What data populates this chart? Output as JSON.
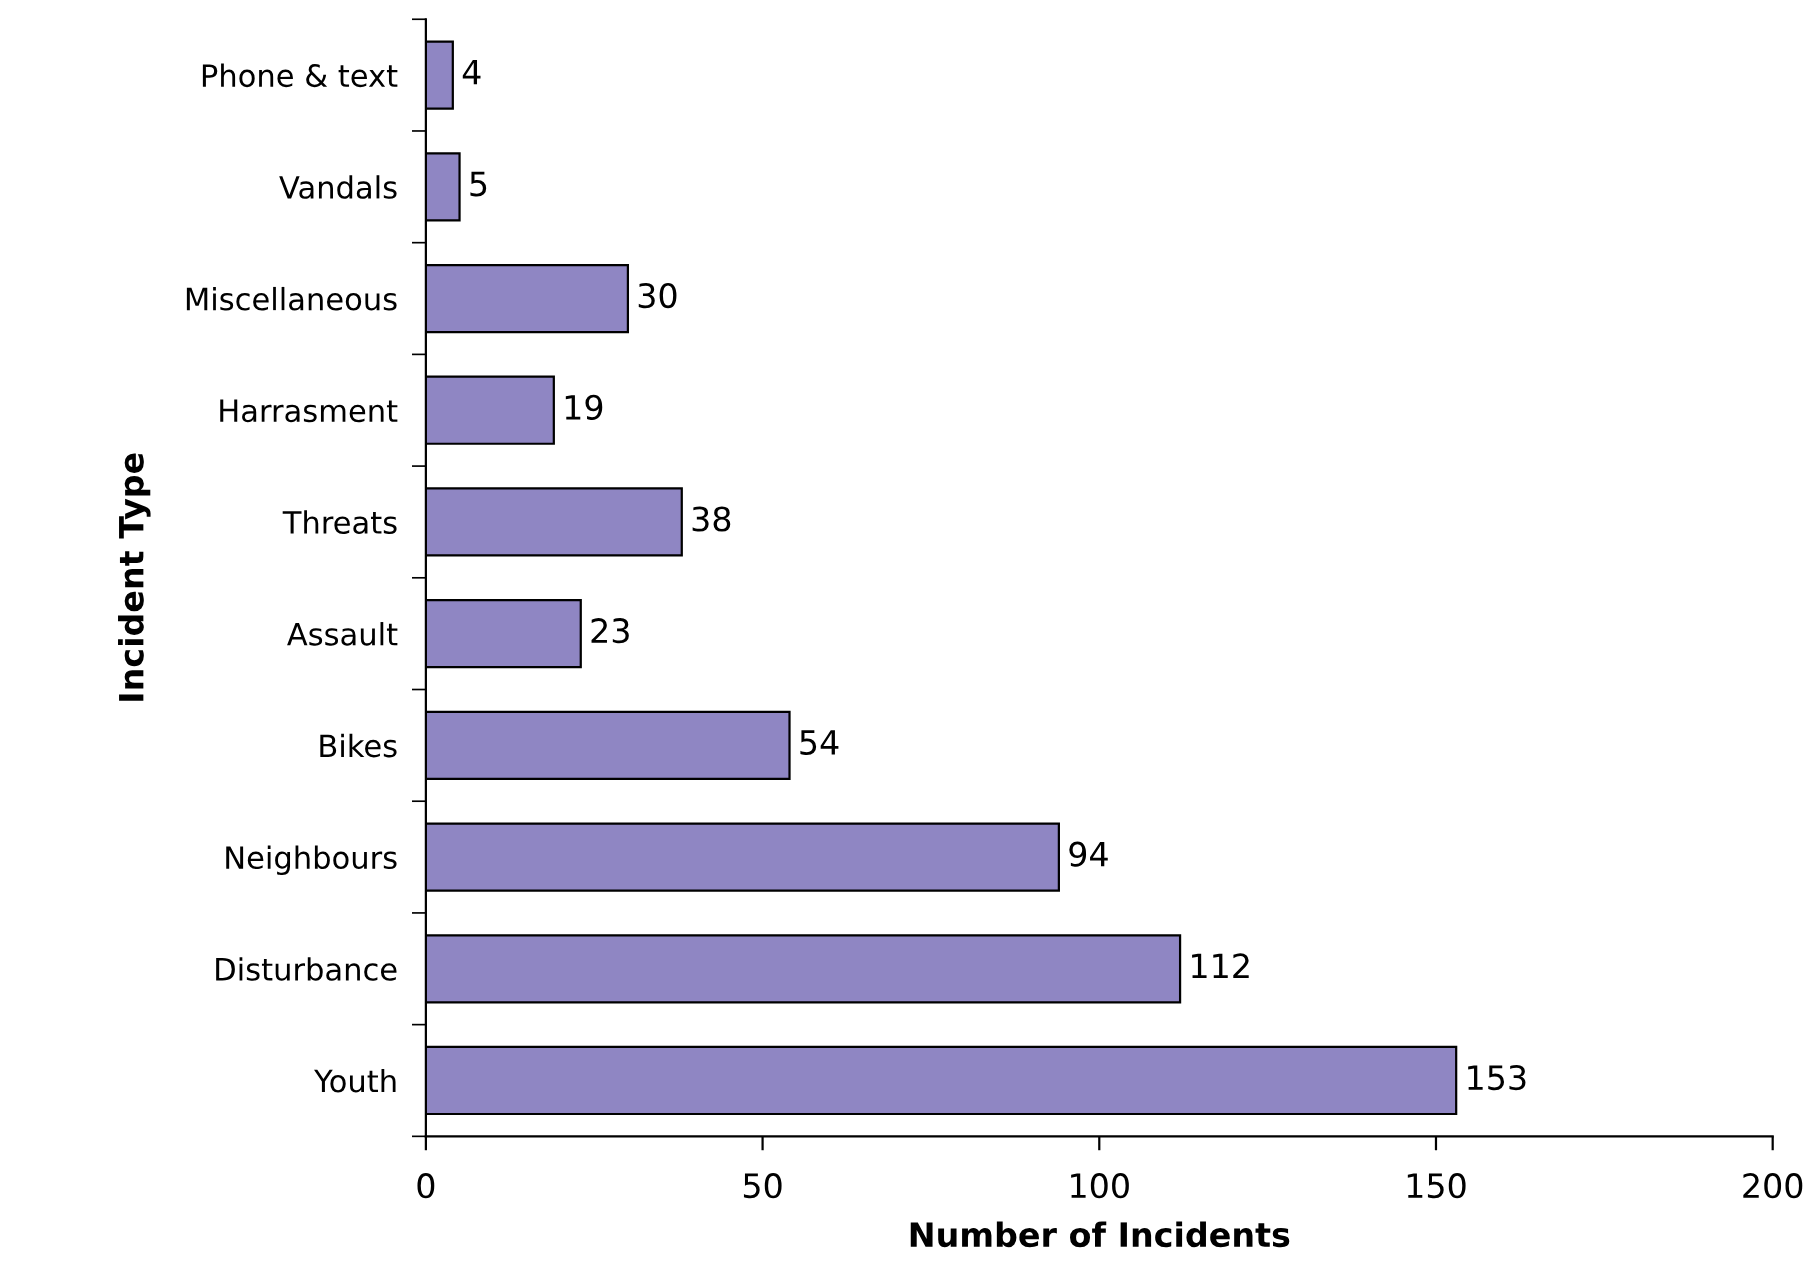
{
  "chart_data": {
    "type": "bar",
    "orientation": "horizontal",
    "xlabel": "Number of Incidents",
    "ylabel": "Incident Type",
    "categories": [
      "Phone & text",
      "Vandals",
      "Miscellaneous",
      "Harrasment",
      "Threats",
      "Assault",
      "Bikes",
      "Neighbours",
      "Disturbance",
      "Youth"
    ],
    "values": [
      4,
      5,
      30,
      19,
      38,
      23,
      54,
      94,
      112,
      153
    ],
    "color": "#8f86c3",
    "xlim": [
      0,
      200
    ],
    "xticks": [
      0,
      50,
      100,
      150,
      200
    ],
    "data_labels": true,
    "grid": false,
    "legend": false
  }
}
